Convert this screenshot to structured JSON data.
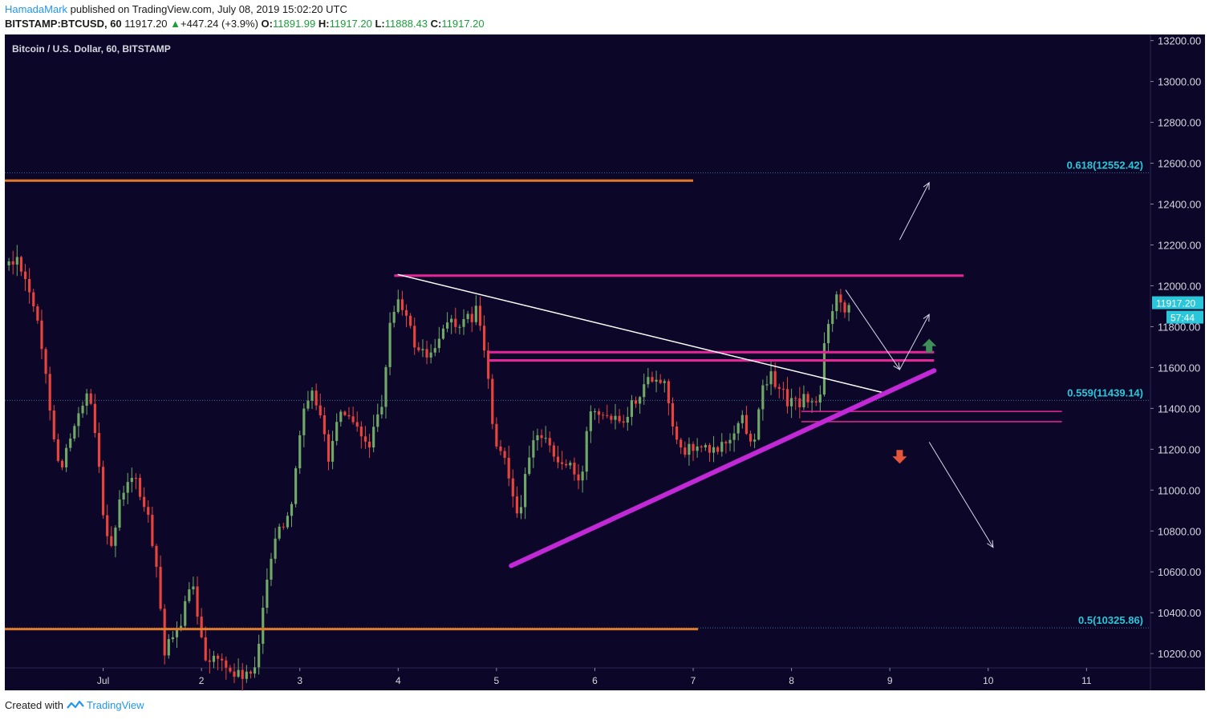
{
  "header": {
    "author": "HamadaMark",
    "published_text": "published on TradingView.com, July 08, 2019 15:02:20 UTC",
    "symbol": "BITSTAMP:BTCUSD, 60",
    "price": "11917.20",
    "change": "+447.24 (+3.9%)",
    "open_label": "O:",
    "open": "11891.99",
    "high_label": "H:",
    "high": "11917.20",
    "low_label": "L:",
    "low": "11888.43",
    "close_label": "C:",
    "close": "11917.20"
  },
  "footer": {
    "created_with": "Created with",
    "brand": "TradingView"
  },
  "colors": {
    "background": "#0c0728",
    "bull": "#6fa867",
    "bear": "#e8433d",
    "magenta": "#e62599",
    "purple": "#c128d6",
    "orange": "#e07a2a",
    "cyan": "#29c7d9",
    "white": "#ffffff"
  },
  "chart_data": {
    "type": "candlestick",
    "title": "Bitcoin / U.S. Dollar, 60, BITSTAMP",
    "ylim": [
      10130,
      13230
    ],
    "xlim": [
      0.0,
      11.65
    ],
    "y_ticks": [
      10200,
      10400,
      10600,
      10800,
      11000,
      11200,
      11400,
      11600,
      11800,
      12000,
      12200,
      12400,
      12600,
      12800,
      13000,
      13200
    ],
    "y_tick_labels": [
      "10200.00",
      "10400.00",
      "10600.00",
      "10800.00",
      "11000.00",
      "11200.00",
      "11400.00",
      "11600.00",
      "11800.00",
      "12000.00",
      "12200.00",
      "12400.00",
      "12600.00",
      "12800.00",
      "13000.00",
      "13200.00"
    ],
    "x_ticks": [
      1,
      2,
      3,
      4,
      5,
      6,
      7,
      8,
      9,
      10,
      11
    ],
    "x_tick_labels": [
      "Jul",
      "2",
      "3",
      "4",
      "5",
      "6",
      "7",
      "8",
      "9",
      "10",
      "11"
    ],
    "last_price": {
      "value": 11917.2,
      "label": "11917.20",
      "countdown": "57:44"
    },
    "fib_levels": [
      {
        "value": 12552.42,
        "label": "0.618(12552.42)"
      },
      {
        "value": 11439.14,
        "label": "0.559(11439.14)"
      },
      {
        "value": 10325.86,
        "label": "0.5(10325.86)"
      }
    ],
    "horizontal_lines": [
      {
        "color": "orange",
        "y": 12515,
        "x1": 0.0,
        "x2": 7.0
      },
      {
        "color": "orange",
        "y": 10320,
        "x1": 0.0,
        "x2": 7.05
      },
      {
        "color": "magenta",
        "y": 12050,
        "x1": 3.96,
        "x2": 9.75
      },
      {
        "color": "magenta",
        "y": 11675,
        "x1": 4.92,
        "x2": 9.45
      },
      {
        "color": "magenta",
        "y": 11635,
        "x1": 4.92,
        "x2": 9.45
      },
      {
        "color": "magenta-thin",
        "y": 11385,
        "x1": 8.1,
        "x2": 10.75
      },
      {
        "color": "magenta-thin",
        "y": 11335,
        "x1": 8.1,
        "x2": 10.75
      }
    ],
    "trend_lines": [
      {
        "color": "white",
        "x1": 4.0,
        "y1": 12055,
        "x2": 8.95,
        "y2": 11475
      },
      {
        "color": "purple",
        "x1": 5.15,
        "y1": 10630,
        "x2": 9.45,
        "y2": 11585
      }
    ],
    "arrows": [
      {
        "x1": 9.1,
        "y1": 12225,
        "x2": 9.4,
        "y2": 12505
      },
      {
        "x1": 8.55,
        "y1": 11980,
        "x2": 9.1,
        "y2": 11590
      },
      {
        "x1": 9.1,
        "y1": 11590,
        "x2": 9.4,
        "y2": 11860
      },
      {
        "x1": 9.4,
        "y1": 11235,
        "x2": 10.05,
        "y2": 10720
      }
    ],
    "markers": [
      {
        "type": "up",
        "x": 9.4,
        "y": 11705,
        "color": "#3f8f5a"
      },
      {
        "type": "down",
        "x": 9.1,
        "y": 11165,
        "color": "#e5553a"
      }
    ]
  }
}
